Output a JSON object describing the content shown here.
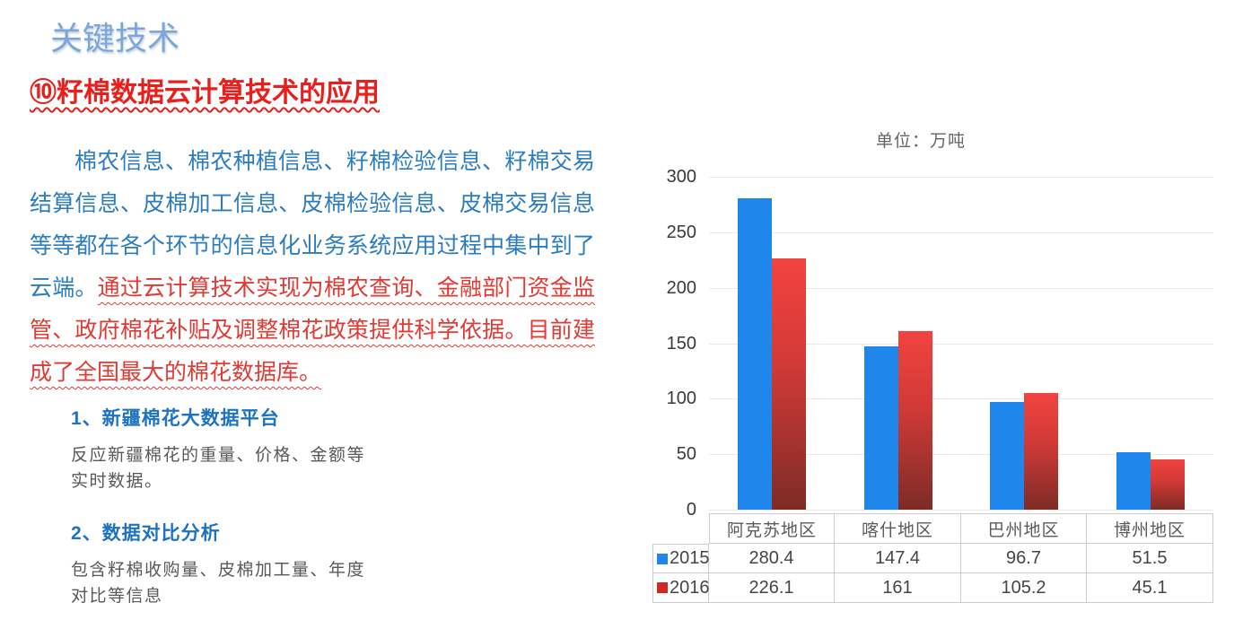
{
  "slide": {
    "title": "关键技术",
    "heading": "⑩籽棉数据云计算技术的应用"
  },
  "article": {
    "intro_text": "棉农信息、棉农种植信息、籽棉检验信息、籽棉交易结算信息、皮棉加工信息、皮棉检验信息、皮棉交易信息等等都在各个环节的信息化业务系统应用过程中集中到了云端。",
    "highlight_text": "通过云计算技术实现为棉农查询、金融部门资金监管、政府棉花补贴及调整棉花政策提供科学依据。目前建成了全国最大的棉花数据库。"
  },
  "notes": [
    {
      "title": "1、新疆棉花大数据平台",
      "body": "反应新疆棉花的重量、价格、金额等\n实时数据。"
    },
    {
      "title": "2、数据对比分析",
      "body": "包含籽棉收购量、皮棉加工量、年度\n对比等信息"
    }
  ],
  "chart_data": {
    "type": "bar",
    "title": "单位：万吨",
    "categories": [
      "阿克苏地区",
      "喀什地区",
      "巴州地区",
      "博州地区"
    ],
    "series": [
      {
        "name": "2015",
        "color": "#1f86ec",
        "values": [
          280.4,
          147.4,
          96.7,
          51.5
        ]
      },
      {
        "name": "2016",
        "color": "#d8322f",
        "values": [
          226.1,
          161,
          105.2,
          45.1
        ]
      }
    ],
    "xlabel": "",
    "ylabel": "",
    "ylim": [
      0,
      300
    ],
    "yticks": [
      0,
      50,
      100,
      150,
      200,
      250,
      300
    ],
    "grid": true,
    "legend_position": "table-left",
    "colors": {
      "bar_2015": "#1f86ec",
      "bar_2016_top": "#f2433f",
      "bar_2016_bottom": "#7e2b26",
      "gridline": "#e9e9e9",
      "table_border": "#cccccc"
    }
  }
}
